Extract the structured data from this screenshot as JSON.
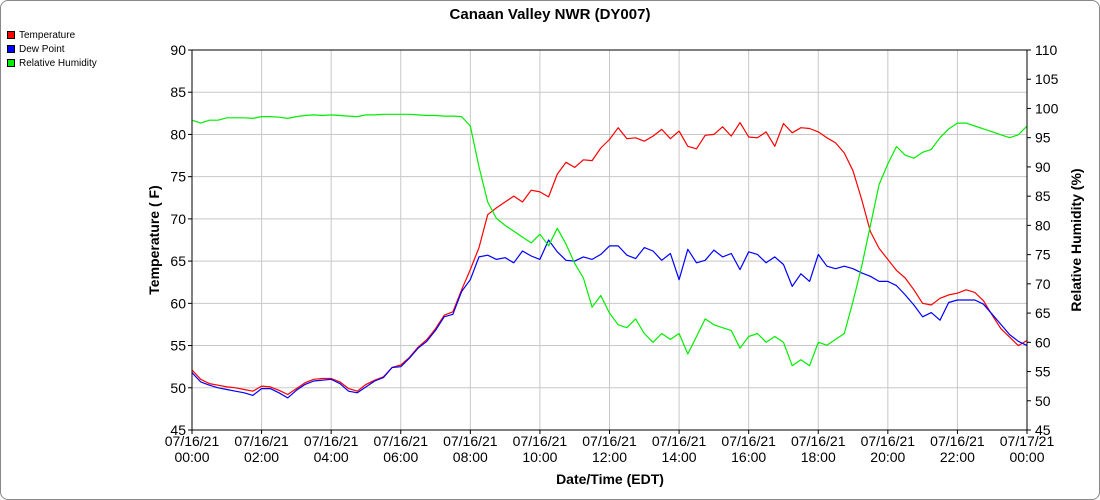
{
  "chart_data": {
    "type": "line",
    "title": "Canaan Valley NWR (DY007)",
    "xlabel": "Date/Time (EDT)",
    "ylabel": "Temperature ( F)",
    "y2label": "Relative Humidity (%)",
    "ylim": [
      45,
      90
    ],
    "y2lim": [
      45,
      110
    ],
    "yticks": [
      "45",
      "50",
      "55",
      "60",
      "65",
      "70",
      "75",
      "80",
      "85",
      "90"
    ],
    "y2ticks": [
      "45",
      "50",
      "55",
      "60",
      "65",
      "70",
      "75",
      "80",
      "85",
      "90",
      "95",
      "100",
      "105",
      "110"
    ],
    "xticks": [
      {
        "date": "07/16/21",
        "time": "00:00"
      },
      {
        "date": "07/16/21",
        "time": "02:00"
      },
      {
        "date": "07/16/21",
        "time": "04:00"
      },
      {
        "date": "07/16/21",
        "time": "06:00"
      },
      {
        "date": "07/16/21",
        "time": "08:00"
      },
      {
        "date": "07/16/21",
        "time": "10:00"
      },
      {
        "date": "07/16/21",
        "time": "12:00"
      },
      {
        "date": "07/16/21",
        "time": "14:00"
      },
      {
        "date": "07/16/21",
        "time": "16:00"
      },
      {
        "date": "07/16/21",
        "time": "18:00"
      },
      {
        "date": "07/16/21",
        "time": "20:00"
      },
      {
        "date": "07/16/21",
        "time": "22:00"
      },
      {
        "date": "07/17/21",
        "time": "00:00"
      }
    ],
    "grid": true,
    "legend_position": "top-left",
    "x_hours": [
      0,
      0.25,
      0.5,
      0.75,
      1,
      1.25,
      1.5,
      1.75,
      2,
      2.25,
      2.5,
      2.75,
      3,
      3.25,
      3.5,
      3.75,
      4,
      4.25,
      4.5,
      4.75,
      5,
      5.25,
      5.5,
      5.75,
      6,
      6.25,
      6.5,
      6.75,
      7,
      7.25,
      7.5,
      7.75,
      8,
      8.25,
      8.5,
      8.75,
      9,
      9.25,
      9.5,
      9.75,
      10,
      10.25,
      10.5,
      10.75,
      11,
      11.25,
      11.5,
      11.75,
      12,
      12.25,
      12.5,
      12.75,
      13,
      13.25,
      13.5,
      13.75,
      14,
      14.25,
      14.5,
      14.75,
      15,
      15.25,
      15.5,
      15.75,
      16,
      16.25,
      16.5,
      16.75,
      17,
      17.25,
      17.5,
      17.75,
      18,
      18.25,
      18.5,
      18.75,
      19,
      19.25,
      19.5,
      19.75,
      20,
      20.25,
      20.5,
      20.75,
      21,
      21.25,
      21.5,
      21.75,
      22,
      22.25,
      22.5,
      22.75,
      23,
      23.25,
      23.5,
      23.75,
      24
    ],
    "series": [
      {
        "name": "Temperature",
        "axis": "left",
        "color": "#ff0000",
        "values": [
          52.1,
          51.0,
          50.5,
          50.3,
          50.1,
          50.0,
          49.8,
          49.6,
          50.2,
          50.1,
          49.7,
          49.2,
          49.9,
          50.6,
          51.0,
          51.1,
          51.1,
          50.7,
          49.9,
          49.6,
          50.4,
          50.9,
          51.3,
          52.4,
          52.7,
          53.6,
          54.8,
          55.7,
          57.0,
          58.6,
          59.0,
          61.6,
          64.0,
          66.6,
          70.5,
          71.3,
          72.0,
          72.7,
          72.0,
          73.4,
          73.2,
          72.6,
          75.3,
          76.7,
          76.1,
          77.0,
          76.9,
          78.4,
          79.4,
          80.8,
          79.5,
          79.6,
          79.2,
          79.8,
          80.6,
          79.5,
          80.4,
          78.6,
          78.3,
          79.9,
          80.0,
          80.9,
          79.8,
          81.4,
          79.7,
          79.6,
          80.3,
          78.6,
          81.3,
          80.2,
          80.8,
          80.7,
          80.3,
          79.6,
          79.0,
          77.8,
          75.7,
          72.3,
          68.5,
          66.5,
          65.2,
          63.9,
          63.0,
          61.6,
          60.0,
          59.8,
          60.6,
          61.0,
          61.2,
          61.6,
          61.3,
          60.3,
          58.6,
          57.0,
          56.0,
          55.0,
          55.6
        ],
        "xpts": [
          0,
          0.25,
          0.5,
          0.75,
          1,
          1.25,
          1.5,
          1.75,
          2,
          2.25,
          2.5,
          2.75,
          3,
          3.25,
          3.5,
          3.75,
          4,
          4.25,
          4.5,
          4.75,
          5,
          5.25,
          5.5,
          5.75,
          6,
          6.25,
          6.5,
          6.75,
          7,
          7.25,
          7.5,
          7.75,
          8,
          8.25,
          8.5,
          8.75,
          9,
          9.25,
          9.5,
          9.75,
          10,
          10.25,
          10.5,
          10.75,
          11,
          11.25,
          11.5,
          11.75,
          12,
          12.25,
          12.5,
          12.75,
          13,
          13.25,
          13.5,
          13.75,
          14,
          14.25,
          14.5,
          14.75,
          15,
          15.25,
          15.5,
          15.75,
          16,
          16.25,
          16.5,
          16.75,
          17,
          17.25,
          17.5,
          17.75,
          18,
          18.25,
          18.5,
          18.75,
          19,
          19.25,
          19.5,
          19.75,
          20,
          20.25,
          20.5,
          20.75,
          21,
          21.25,
          21.5,
          21.75,
          22,
          22.25,
          22.5,
          22.75,
          23,
          23.25,
          23.5,
          23.75,
          24
        ]
      },
      {
        "name": "Dew Point",
        "axis": "left",
        "color": "#0000ff",
        "values": [
          51.8,
          50.7,
          50.3,
          50.0,
          49.8,
          49.6,
          49.4,
          49.1,
          49.9,
          49.9,
          49.4,
          48.8,
          49.7,
          50.4,
          50.8,
          50.9,
          51.0,
          50.5,
          49.6,
          49.4,
          50.1,
          50.8,
          51.2,
          52.4,
          52.5,
          53.5,
          54.7,
          55.5,
          56.8,
          58.4,
          58.7,
          61.4,
          62.8,
          65.5,
          65.7,
          65.2,
          65.4,
          64.8,
          66.2,
          65.6,
          65.2,
          67.5,
          66.1,
          65.1,
          65.0,
          65.5,
          65.2,
          65.8,
          66.8,
          66.8,
          65.7,
          65.3,
          66.6,
          66.2,
          65.1,
          65.9,
          62.8,
          66.4,
          64.8,
          65.1,
          66.3,
          65.5,
          65.9,
          64.0,
          66.1,
          65.8,
          64.8,
          65.5,
          64.6,
          62.0,
          63.5,
          62.6,
          65.8,
          64.4,
          64.1,
          64.4,
          64.1,
          63.6,
          63.2,
          62.6,
          62.6,
          62.1,
          61.0,
          59.8,
          58.4,
          58.9,
          58.0,
          60.1,
          60.4,
          60.4,
          60.4,
          59.9,
          58.7,
          57.5,
          56.3,
          55.5,
          55.0
        ],
        "xpts": [
          0,
          0.25,
          0.5,
          0.75,
          1,
          1.25,
          1.5,
          1.75,
          2,
          2.25,
          2.5,
          2.75,
          3,
          3.25,
          3.5,
          3.75,
          4,
          4.25,
          4.5,
          4.75,
          5,
          5.25,
          5.5,
          5.75,
          6,
          6.25,
          6.5,
          6.75,
          7,
          7.25,
          7.5,
          7.75,
          8,
          8.25,
          8.5,
          8.75,
          9,
          9.25,
          9.5,
          9.75,
          10,
          10.25,
          10.5,
          10.75,
          11,
          11.25,
          11.5,
          11.75,
          12,
          12.25,
          12.5,
          12.75,
          13,
          13.25,
          13.5,
          13.75,
          14,
          14.25,
          14.5,
          14.75,
          15,
          15.25,
          15.5,
          15.75,
          16,
          16.25,
          16.5,
          16.75,
          17,
          17.25,
          17.5,
          17.75,
          18,
          18.25,
          18.5,
          18.75,
          19,
          19.25,
          19.5,
          19.75,
          20,
          20.25,
          20.5,
          20.75,
          21,
          21.25,
          21.5,
          21.75,
          22,
          22.25,
          22.5,
          22.75,
          23,
          23.25,
          23.5,
          23.75,
          24
        ]
      },
      {
        "name": "Relative Humidity",
        "axis": "right",
        "color": "#00ee00",
        "values": [
          98.0,
          97.5,
          98.0,
          98.0,
          98.4,
          98.4,
          98.4,
          98.3,
          98.6,
          98.6,
          98.5,
          98.3,
          98.6,
          98.8,
          98.9,
          98.8,
          98.9,
          98.8,
          98.7,
          98.6,
          98.9,
          98.9,
          99.0,
          99.0,
          99.0,
          99.0,
          98.9,
          98.8,
          98.8,
          98.7,
          98.7,
          98.6,
          97.0,
          90.0,
          84.0,
          81.2,
          80.0,
          79.0,
          78.0,
          77.0,
          78.5,
          76.5,
          79.5,
          76.8,
          73.5,
          71.0,
          66.0,
          68.0,
          65.0,
          63.0,
          62.5,
          64.0,
          61.5,
          60.0,
          61.5,
          60.5,
          61.5,
          58.0,
          61.0,
          64.0,
          63.0,
          62.5,
          62.0,
          59.0,
          61.0,
          61.5,
          60.0,
          61.0,
          60.0,
          56.0,
          57.0,
          56.0,
          60.0,
          59.5,
          60.5,
          61.5,
          67.0,
          73.0,
          80.0,
          87.0,
          90.5,
          93.5,
          92.0,
          91.5,
          92.5,
          93.0,
          95.0,
          96.5,
          97.5,
          97.5,
          97.0,
          96.5,
          96.0,
          95.5,
          95.0,
          95.5,
          97.0
        ],
        "xpts": [
          0,
          0.25,
          0.5,
          0.75,
          1,
          1.25,
          1.5,
          1.75,
          2,
          2.25,
          2.5,
          2.75,
          3,
          3.25,
          3.5,
          3.75,
          4,
          4.25,
          4.5,
          4.75,
          5,
          5.25,
          5.5,
          5.75,
          6,
          6.25,
          6.5,
          6.75,
          7,
          7.25,
          7.5,
          7.75,
          8,
          8.25,
          8.5,
          8.75,
          9,
          9.25,
          9.5,
          9.75,
          10,
          10.25,
          10.5,
          10.75,
          11,
          11.25,
          11.5,
          11.75,
          12,
          12.25,
          12.5,
          12.75,
          13,
          13.25,
          13.5,
          13.75,
          14,
          14.25,
          14.5,
          14.75,
          15,
          15.25,
          15.5,
          15.75,
          16,
          16.25,
          16.5,
          16.75,
          17,
          17.25,
          17.5,
          17.75,
          18,
          18.25,
          18.5,
          18.75,
          19,
          19.25,
          19.5,
          19.75,
          20,
          20.25,
          20.5,
          20.75,
          21,
          21.25,
          21.5,
          21.75,
          22,
          22.25,
          22.5,
          22.75,
          23,
          23.25,
          23.5,
          23.75,
          24
        ]
      }
    ]
  },
  "legend": {
    "items": [
      {
        "label": "Temperature",
        "color": "#ff0000"
      },
      {
        "label": "Dew Point",
        "color": "#0000ff"
      },
      {
        "label": "Relative Humidity",
        "color": "#00ee00"
      }
    ]
  }
}
